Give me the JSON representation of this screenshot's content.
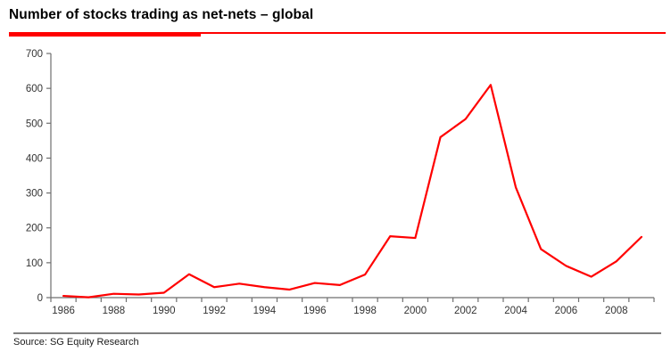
{
  "header": {
    "title": "Number of stocks trading as net-nets – global"
  },
  "footer": {
    "source": "Source: SG Equity Research"
  },
  "colors": {
    "line": "#ff0000",
    "accent_bar": "#ff0000",
    "axis": "#6f6f6f",
    "tick_text": "#333333",
    "divider": "#808080",
    "background": "#ffffff"
  },
  "chart_data": {
    "type": "line",
    "title": "Number of stocks trading as net-nets – global",
    "series_name": "Number of stocks trading as net-nets (global)",
    "categories": [
      1986,
      1987,
      1988,
      1989,
      1990,
      1991,
      1992,
      1993,
      1994,
      1995,
      1996,
      1997,
      1998,
      1999,
      2000,
      2001,
      2002,
      2003,
      2004,
      2005,
      2006,
      2007,
      2008,
      2009
    ],
    "values": [
      5,
      1,
      11,
      9,
      14,
      67,
      30,
      40,
      30,
      23,
      42,
      36,
      66,
      176,
      171,
      460,
      512,
      610,
      316,
      139,
      91,
      60,
      104,
      174
    ],
    "xlabel": "",
    "ylabel": "",
    "ylim": [
      0,
      700
    ],
    "y_ticks": [
      0,
      100,
      200,
      300,
      400,
      500,
      600,
      700
    ],
    "x_tick_labels": [
      "1986",
      "1988",
      "1990",
      "1992",
      "1994",
      "1996",
      "1998",
      "2000",
      "2002",
      "2004",
      "2006",
      "2008"
    ],
    "x_label_step": 2,
    "grid": false,
    "legend": false,
    "line_color": "#ff0000"
  }
}
